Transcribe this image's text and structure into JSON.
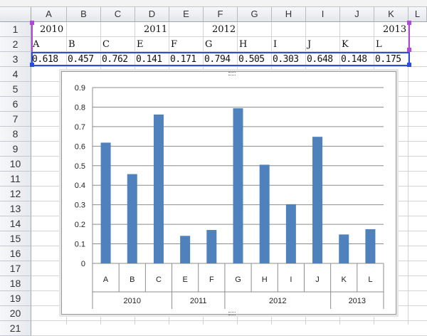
{
  "columns": [
    "A",
    "B",
    "C",
    "D",
    "E",
    "F",
    "G",
    "H",
    "I",
    "J",
    "K",
    "L"
  ],
  "rows": [
    "1",
    "2",
    "3",
    "4",
    "5",
    "6",
    "7",
    "8",
    "9",
    "10",
    "11",
    "12",
    "13",
    "14",
    "15",
    "16",
    "17",
    "18",
    "19",
    "20",
    "21"
  ],
  "cells": {
    "row1": [
      {
        "col": "A",
        "text": "2010"
      },
      {
        "col": "D",
        "text": "2011"
      },
      {
        "col": "F",
        "text": "2012"
      },
      {
        "col": "K",
        "text": "2013"
      }
    ],
    "row2": [
      "A",
      "B",
      "C",
      "E",
      "F",
      "G",
      "H",
      "I",
      "J",
      "K",
      "L"
    ],
    "row3": [
      "0.618",
      "0.457",
      "0.762",
      "0.141",
      "0.171",
      "0.794",
      "0.505",
      "0.303",
      "0.648",
      "0.148",
      "0.175"
    ]
  },
  "chart_data": {
    "type": "bar",
    "categories": [
      "A",
      "B",
      "C",
      "E",
      "F",
      "G",
      "H",
      "I",
      "J",
      "K",
      "L"
    ],
    "values": [
      0.618,
      0.457,
      0.762,
      0.141,
      0.171,
      0.794,
      0.505,
      0.303,
      0.648,
      0.148,
      0.175
    ],
    "groups": [
      {
        "label": "2010",
        "count": 3
      },
      {
        "label": "2011",
        "count": 2
      },
      {
        "label": "2012",
        "count": 4
      },
      {
        "label": "2013",
        "count": 2
      }
    ],
    "y_ticks": [
      "0",
      "0.1",
      "0.2",
      "0.3",
      "0.4",
      "0.5",
      "0.6",
      "0.7",
      "0.8",
      "0.9"
    ],
    "ylim": [
      0,
      0.9
    ],
    "grid": true,
    "legend": "none",
    "bar_color": "#4f81bd"
  }
}
